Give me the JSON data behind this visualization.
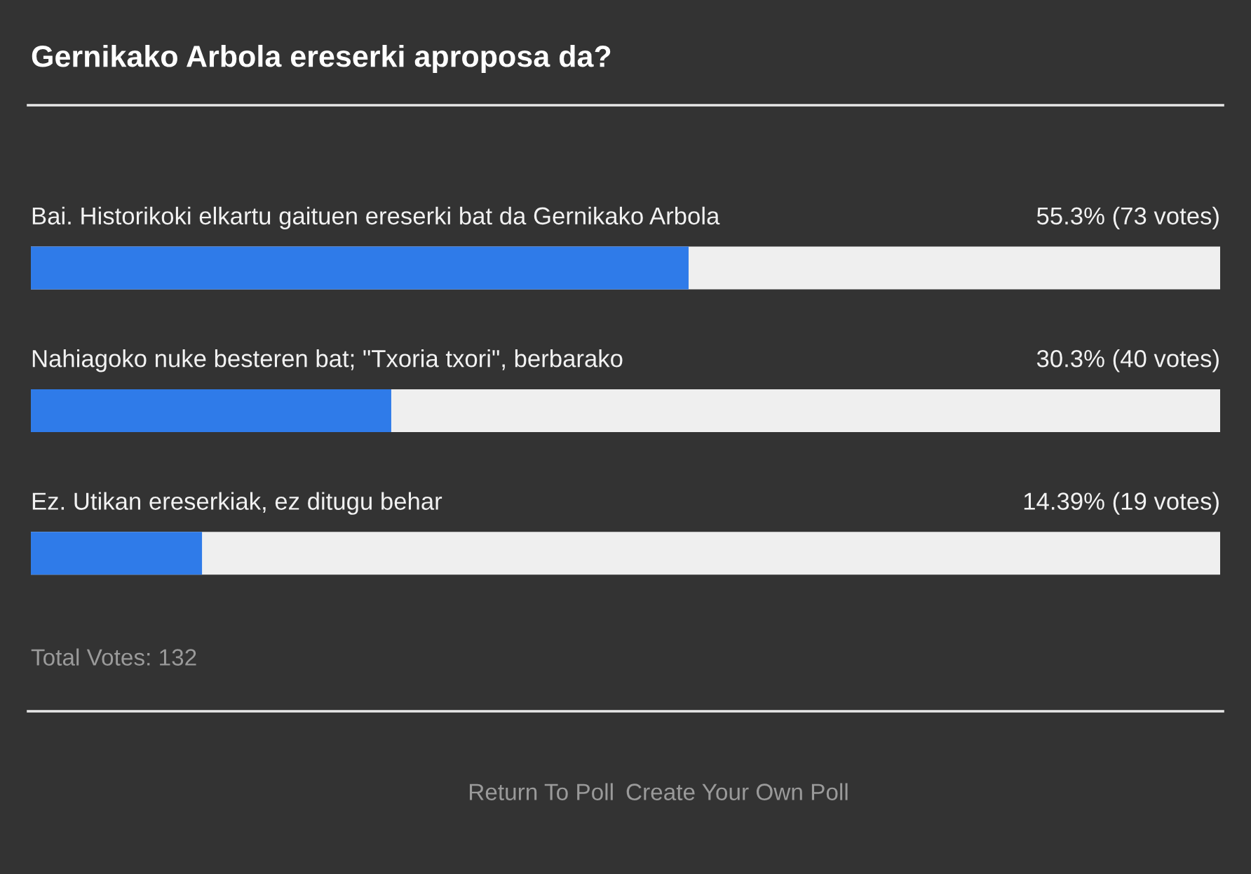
{
  "chart_data": {
    "type": "bar",
    "orientation": "horizontal",
    "title": "Gernikako Arbola ereserki aproposa da?",
    "categories": [
      "Bai. Historikoki elkartu gaituen ereserki bat da Gernikako Arbola",
      "Nahiagoko nuke besteren bat; \"Txoria txori\", berbarako",
      "Ez. Utikan ereserkiak, ez ditugu behar"
    ],
    "values": [
      55.3,
      30.3,
      14.39
    ],
    "value_labels": [
      "55.3% (73 votes)",
      "30.3% (40 votes)",
      "14.39% (19 votes)"
    ],
    "color": "#2f7be9",
    "annotations": [
      "Total Votes: 132",
      "Return To Poll",
      "Create Your Own Poll"
    ]
  }
}
